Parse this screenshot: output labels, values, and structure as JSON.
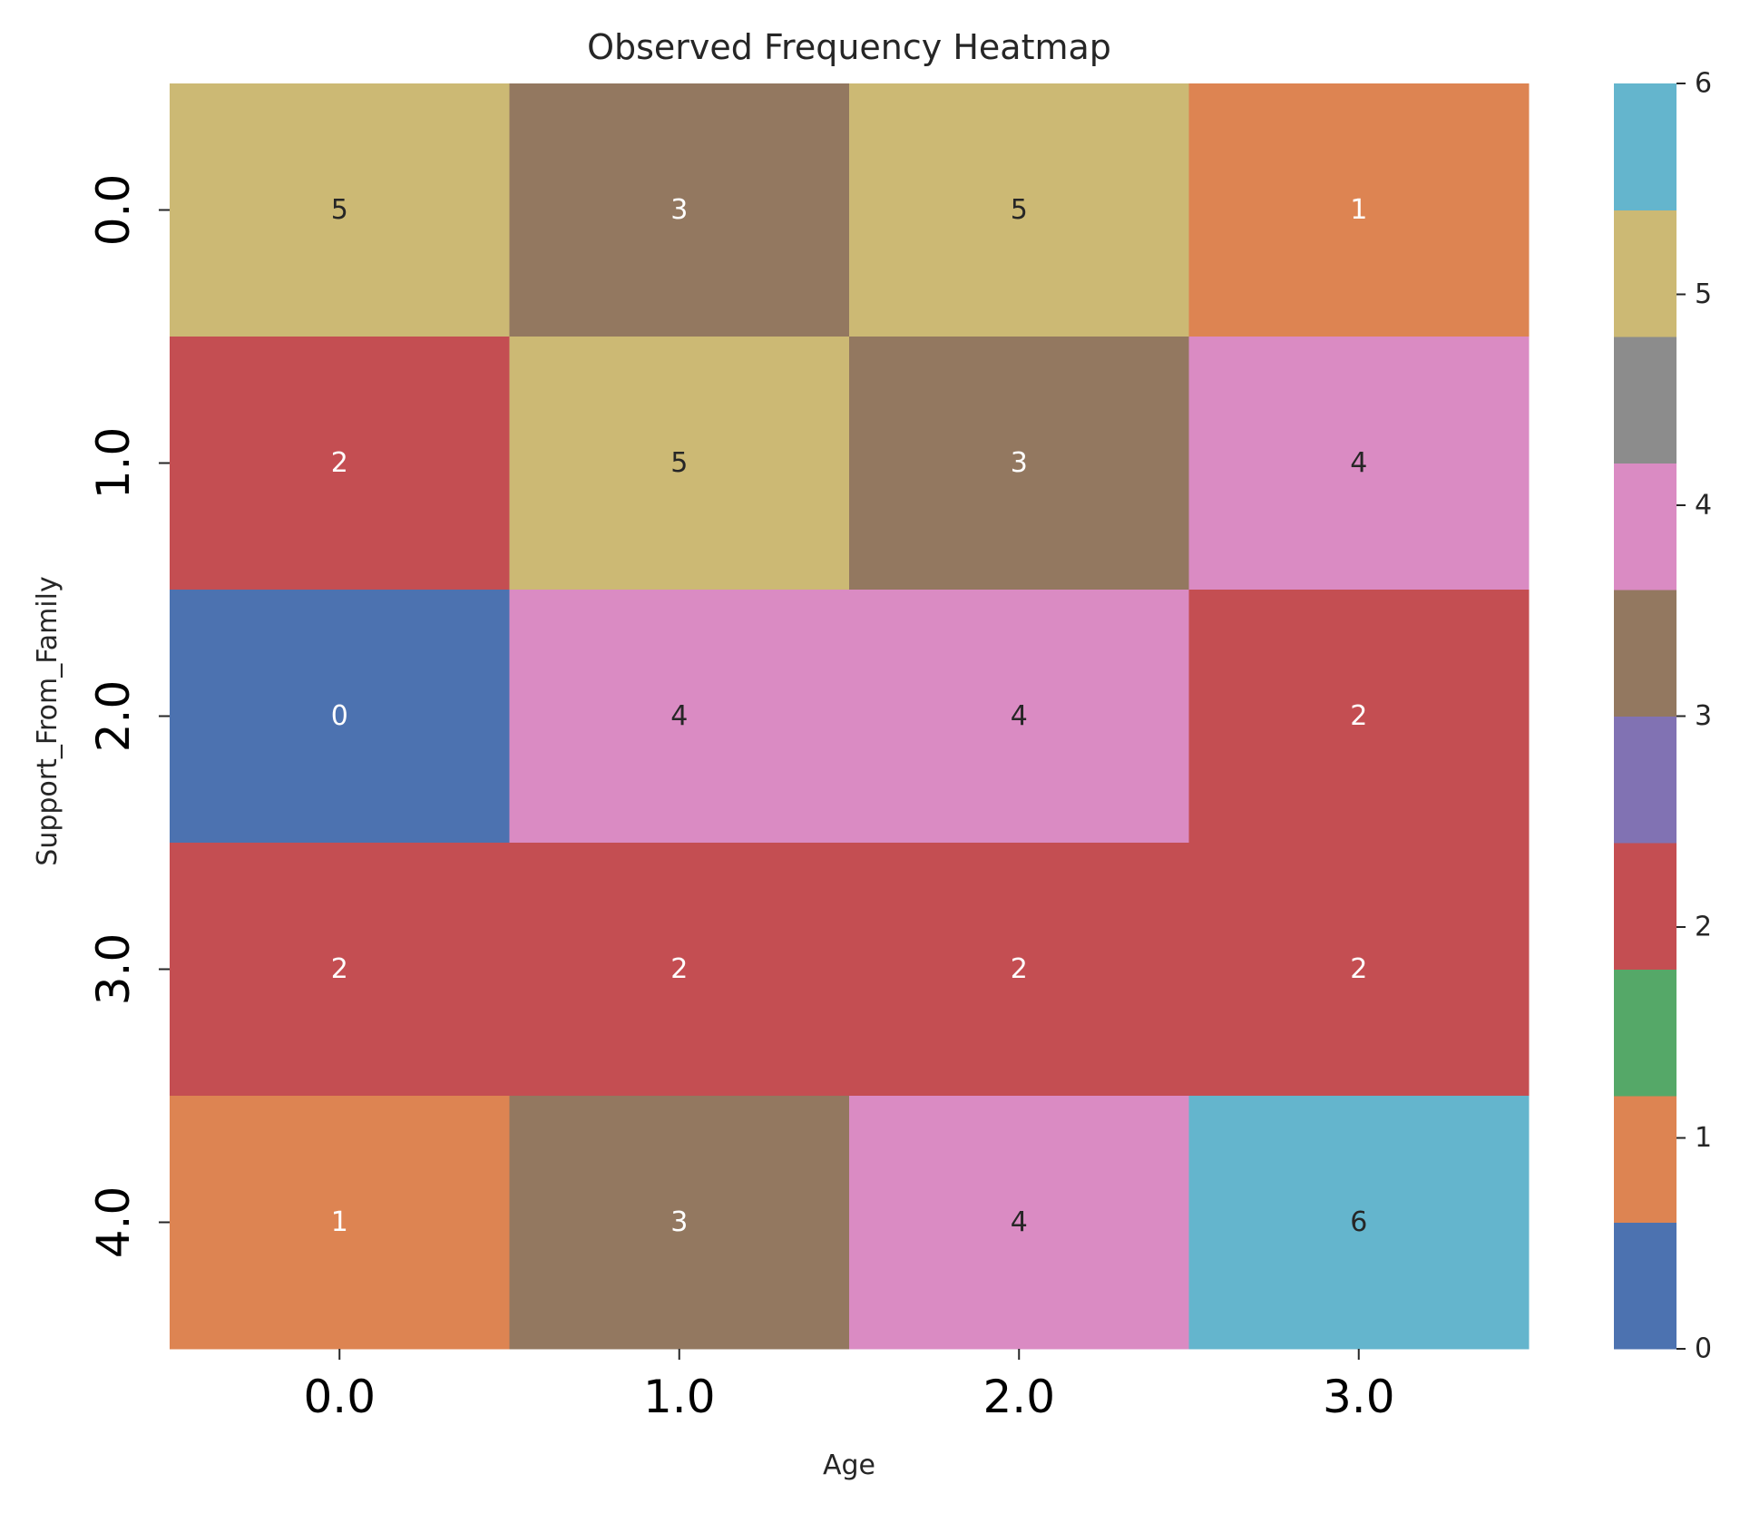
{
  "chart_data": {
    "type": "heatmap",
    "title": "Observed Frequency Heatmap",
    "xlabel": "Age",
    "ylabel": "Support_From_Family",
    "x_categories": [
      "0.0",
      "1.0",
      "2.0",
      "3.0"
    ],
    "y_categories": [
      "0.0",
      "1.0",
      "2.0",
      "3.0",
      "4.0"
    ],
    "values": [
      [
        5,
        3,
        5,
        1
      ],
      [
        2,
        5,
        3,
        4
      ],
      [
        0,
        4,
        4,
        2
      ],
      [
        2,
        2,
        2,
        2
      ],
      [
        1,
        3,
        4,
        6
      ]
    ],
    "colorbar": {
      "range": [
        0,
        6
      ],
      "ticks": [
        0,
        1,
        2,
        3,
        4,
        5,
        6
      ],
      "colors": [
        "#4c72b0",
        "#dd8452",
        "#55a868",
        "#c44e52",
        "#8172b3",
        "#937860",
        "#da8bc3",
        "#8c8c8c",
        "#ccb974",
        "#64b5cd"
      ]
    },
    "dark_text_color": "#262626",
    "light_text_color": "#ffffff"
  }
}
